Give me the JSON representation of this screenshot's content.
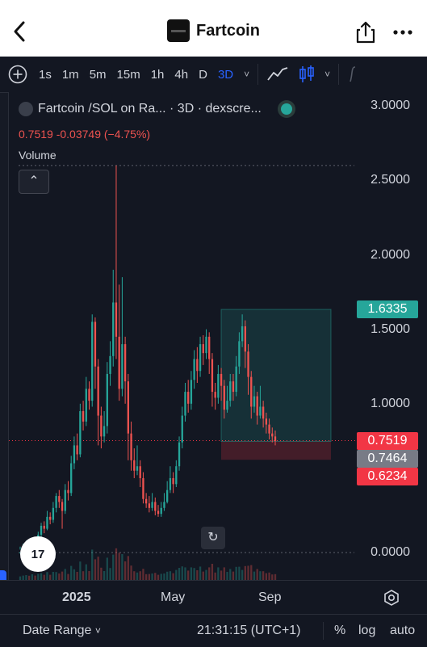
{
  "header": {
    "title": "Fartcoin",
    "back_icon": "back-chevron-icon",
    "share_icon": "share-icon",
    "more_icon": "more-dots-icon"
  },
  "toolbar": {
    "timeframes": [
      "1s",
      "1m",
      "5m",
      "15m",
      "1h",
      "4h",
      "D",
      "3D"
    ],
    "active_timeframe": "3D",
    "dropdown_glyph": "˅"
  },
  "chart": {
    "legend": {
      "title": "Fartcoin /SOL on Ra... · 3D · dexscre...",
      "ohlc": "0.7519  -0.03749 (−4.75%)"
    },
    "volume_label": "Volume",
    "collapse_glyph": "⌃",
    "tv_logo": "17",
    "reset_glyph": "↻",
    "price_tags": [
      {
        "label": "1.6335",
        "color": "#26a69a"
      },
      {
        "label": "0.7519",
        "color": "#f23645"
      },
      {
        "label": "0.7464",
        "color": "#787b86"
      },
      {
        "label": "0.6234",
        "color": "#f23645"
      }
    ],
    "colors": {
      "up": "#26a69a",
      "down": "#ef5350",
      "background": "#131722"
    }
  },
  "xaxis": {
    "labels": [
      "2025",
      "May",
      "Sep"
    ],
    "settings_icon": "gear-icon"
  },
  "bottom": {
    "date_range": "Date Range",
    "time": "21:31:15 (UTC+1)",
    "percent": "%",
    "log": "log",
    "auto": "auto"
  },
  "chart_data": {
    "type": "candlestick",
    "title": "Fartcoin /SOL on Ra... · 3D · dexscre...",
    "y_ticks": [
      0.0,
      0.5,
      1.0,
      1.5,
      2.0,
      2.5,
      3.0
    ],
    "y_tick_labels": [
      "0.0000",
      "0.5000",
      "1.0000",
      "1.5000",
      "2.0000",
      "2.5000",
      "3.0000"
    ],
    "ylim": [
      -0.07,
      3.05
    ],
    "x_labels": [
      "2025",
      "May",
      "Sep"
    ],
    "last_price": 0.7519,
    "change": -0.03749,
    "change_pct": -4.75,
    "position_box": {
      "entry": 0.7464,
      "take_profit": 1.6335,
      "stop_loss": 0.6234
    },
    "candles": [
      [
        0.0,
        0.0,
        0.04,
        0.02
      ],
      [
        0.02,
        0.03,
        0.06,
        0.01
      ],
      [
        0.03,
        0.05,
        0.08,
        0.02
      ],
      [
        0.05,
        0.04,
        0.07,
        0.03
      ],
      [
        0.04,
        0.08,
        0.1,
        0.03
      ],
      [
        0.08,
        0.07,
        0.1,
        0.05
      ],
      [
        0.07,
        0.12,
        0.14,
        0.06
      ],
      [
        0.12,
        0.18,
        0.2,
        0.1
      ],
      [
        0.18,
        0.16,
        0.21,
        0.13
      ],
      [
        0.16,
        0.24,
        0.28,
        0.15
      ],
      [
        0.24,
        0.22,
        0.27,
        0.19
      ],
      [
        0.22,
        0.3,
        0.34,
        0.2
      ],
      [
        0.3,
        0.38,
        0.4,
        0.27
      ],
      [
        0.38,
        0.34,
        0.42,
        0.3
      ],
      [
        0.34,
        0.28,
        0.36,
        0.16
      ],
      [
        0.28,
        0.42,
        0.46,
        0.26
      ],
      [
        0.42,
        0.4,
        0.48,
        0.35
      ],
      [
        0.4,
        0.6,
        0.65,
        0.38
      ],
      [
        0.6,
        0.72,
        0.78,
        0.56
      ],
      [
        0.72,
        0.66,
        0.8,
        0.62
      ],
      [
        0.66,
        0.95,
        1.0,
        0.64
      ],
      [
        0.95,
        0.88,
        1.02,
        0.82
      ],
      [
        0.88,
        1.1,
        1.18,
        0.85
      ],
      [
        1.1,
        1.02,
        1.15,
        0.96
      ],
      [
        1.02,
        1.55,
        1.6,
        0.98
      ],
      [
        1.55,
        1.25,
        1.58,
        1.1
      ],
      [
        1.25,
        0.92,
        1.3,
        0.72
      ],
      [
        0.92,
        0.78,
        0.98,
        0.7
      ],
      [
        0.78,
        0.85,
        0.95,
        0.74
      ],
      [
        0.85,
        1.2,
        1.28,
        0.8
      ],
      [
        1.2,
        1.32,
        1.42,
        1.12
      ],
      [
        1.32,
        1.68,
        1.9,
        1.25
      ],
      [
        1.68,
        1.45,
        2.6,
        1.3
      ],
      [
        1.45,
        1.1,
        1.8,
        1.02
      ],
      [
        1.1,
        1.4,
        1.85,
        1.05
      ],
      [
        1.4,
        1.15,
        1.45,
        1.0
      ],
      [
        1.15,
        0.8,
        1.2,
        0.62
      ],
      [
        0.8,
        0.62,
        0.88,
        0.55
      ],
      [
        0.62,
        0.55,
        0.7,
        0.5
      ],
      [
        0.55,
        0.58,
        0.72,
        0.52
      ],
      [
        0.58,
        0.5,
        0.62,
        0.44
      ],
      [
        0.5,
        0.36,
        0.54,
        0.33
      ],
      [
        0.36,
        0.33,
        0.4,
        0.3
      ],
      [
        0.33,
        0.3,
        0.38,
        0.27
      ],
      [
        0.3,
        0.34,
        0.4,
        0.28
      ],
      [
        0.34,
        0.28,
        0.37,
        0.25
      ],
      [
        0.28,
        0.26,
        0.32,
        0.24
      ],
      [
        0.26,
        0.3,
        0.34,
        0.24
      ],
      [
        0.3,
        0.34,
        0.4,
        0.28
      ],
      [
        0.34,
        0.42,
        0.48,
        0.33
      ],
      [
        0.42,
        0.5,
        0.58,
        0.4
      ],
      [
        0.5,
        0.46,
        0.54,
        0.4
      ],
      [
        0.46,
        0.58,
        0.62,
        0.44
      ],
      [
        0.58,
        0.74,
        0.78,
        0.55
      ],
      [
        0.74,
        0.92,
        0.98,
        0.7
      ],
      [
        0.92,
        1.08,
        1.14,
        0.88
      ],
      [
        1.08,
        1.0,
        1.16,
        0.94
      ],
      [
        1.0,
        1.16,
        1.22,
        0.96
      ],
      [
        1.16,
        1.3,
        1.36,
        1.1
      ],
      [
        1.3,
        1.22,
        1.38,
        1.14
      ],
      [
        1.22,
        1.4,
        1.45,
        1.18
      ],
      [
        1.4,
        1.34,
        1.46,
        1.26
      ],
      [
        1.34,
        1.45,
        1.5,
        1.3
      ],
      [
        1.45,
        1.3,
        1.48,
        1.2
      ],
      [
        1.3,
        1.08,
        1.34,
        0.98
      ],
      [
        1.08,
        1.04,
        1.14,
        0.96
      ],
      [
        1.04,
        1.2,
        1.26,
        1.0
      ],
      [
        1.2,
        1.12,
        1.24,
        1.02
      ],
      [
        1.12,
        0.96,
        1.16,
        0.9
      ],
      [
        0.96,
        1.02,
        1.12,
        0.94
      ],
      [
        1.02,
        1.15,
        1.2,
        0.98
      ],
      [
        1.15,
        1.08,
        1.2,
        1.02
      ],
      [
        1.08,
        1.25,
        1.32,
        1.05
      ],
      [
        1.25,
        1.42,
        1.48,
        1.2
      ],
      [
        1.42,
        1.52,
        1.6,
        1.38
      ],
      [
        1.52,
        1.35,
        1.56,
        1.24
      ],
      [
        1.35,
        1.18,
        1.4,
        1.06
      ],
      [
        1.18,
        0.98,
        1.22,
        0.9
      ],
      [
        0.98,
        1.05,
        1.12,
        0.94
      ],
      [
        1.05,
        0.92,
        1.08,
        0.86
      ],
      [
        0.92,
        0.98,
        1.12,
        0.9
      ],
      [
        0.98,
        0.9,
        1.02,
        0.84
      ],
      [
        0.9,
        0.86,
        0.94,
        0.8
      ],
      [
        0.86,
        0.8,
        0.9,
        0.76
      ],
      [
        0.8,
        0.78,
        0.84,
        0.74
      ],
      [
        0.78,
        0.75,
        0.82,
        0.72
      ]
    ]
  }
}
